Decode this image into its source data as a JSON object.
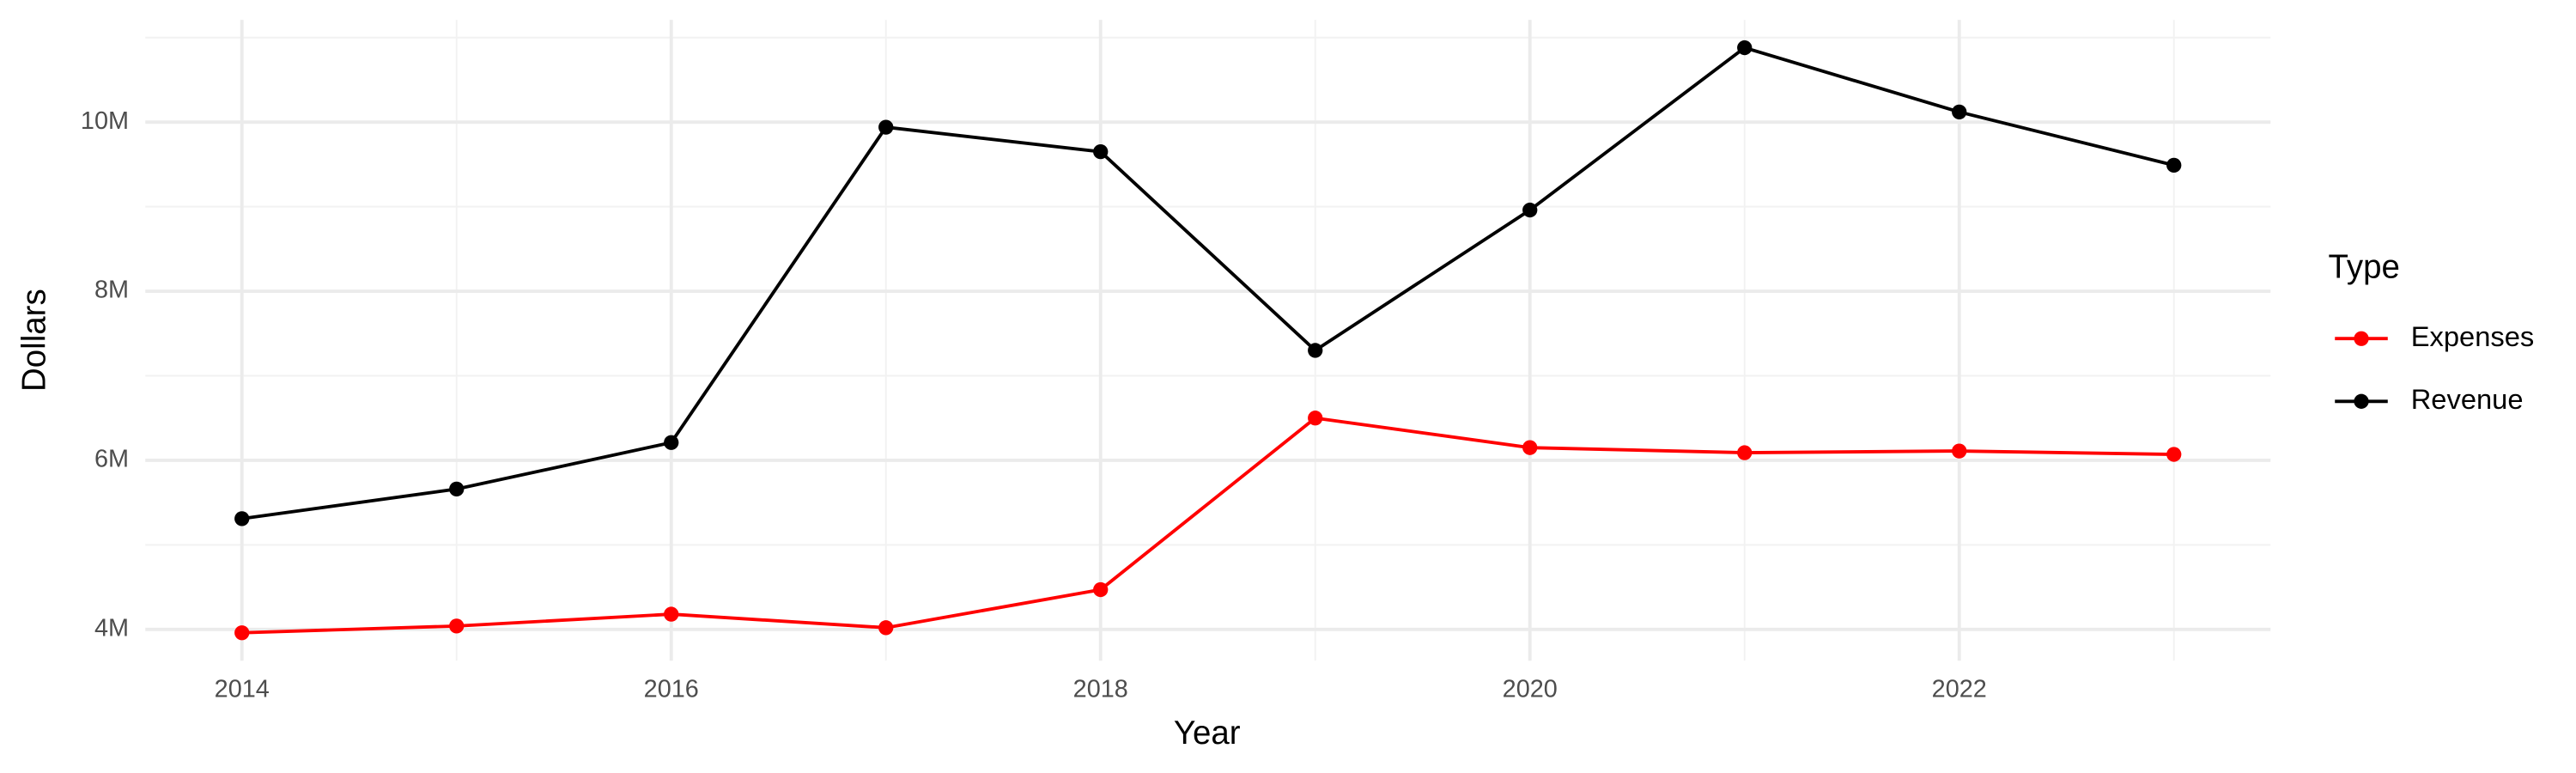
{
  "chart_data": {
    "type": "line",
    "x_label": "Year",
    "y_label": "Dollars",
    "x": [
      2014,
      2015,
      2016,
      2017,
      2018,
      2019,
      2020,
      2021,
      2022,
      2023
    ],
    "series": [
      {
        "name": "Expenses",
        "color": "#ff0000",
        "values": [
          3960000,
          4040000,
          4180000,
          4020000,
          4470000,
          6500000,
          6150000,
          6090000,
          6110000,
          6070000
        ]
      },
      {
        "name": "Revenue",
        "color": "#000000",
        "values": [
          5310000,
          5660000,
          6210000,
          9940000,
          9650000,
          7300000,
          8960000,
          10880000,
          10120000,
          9490000
        ]
      }
    ],
    "xlim": [
      2013.55,
      2023.45
    ],
    "xticks": [
      2014,
      2016,
      2018,
      2020,
      2022
    ],
    "x_minor_ticks": [
      2015,
      2017,
      2019,
      2021,
      2023
    ],
    "ylim": [
      3630000,
      11210000
    ],
    "yticks": [
      {
        "value": 4000000,
        "label": "4M"
      },
      {
        "value": 6000000,
        "label": "6M"
      },
      {
        "value": 8000000,
        "label": "8M"
      },
      {
        "value": 10000000,
        "label": "10M"
      }
    ],
    "y_minor_ticks": [
      5000000,
      7000000,
      9000000,
      11000000
    ],
    "grid": true,
    "legend_title": "Type",
    "legend_position": "right"
  }
}
